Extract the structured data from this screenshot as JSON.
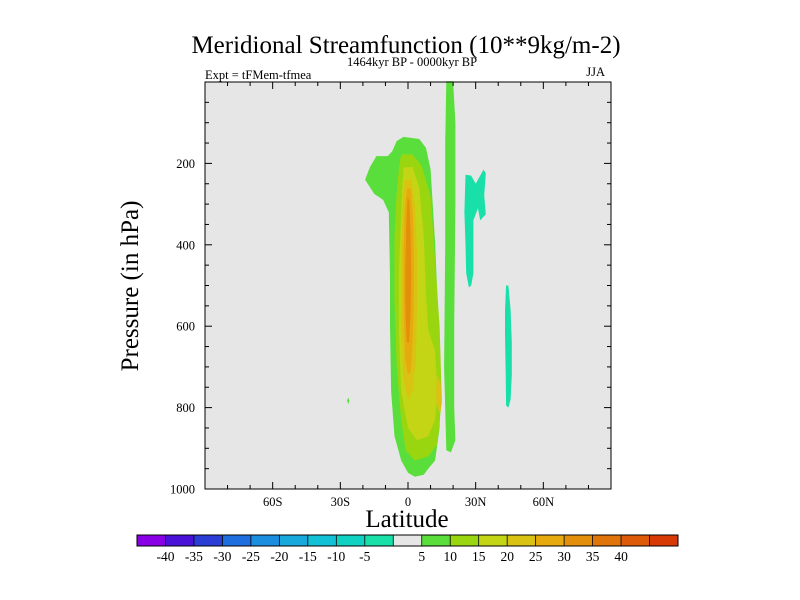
{
  "chart_data": {
    "type": "filled-contour",
    "title": "Meridional Streamfunction (10**9kg/m-2)",
    "subtitle_left": "Expt = tFMem-tfmea",
    "subtitle_center": "1464kyr BP - 0000kyr BP",
    "subtitle_right": "JJA",
    "xlabel": "Latitude",
    "ylabel": "Pressure (in hPa)",
    "xlim": [
      -90,
      90
    ],
    "ylim": [
      0,
      1000
    ],
    "y_reversed": true,
    "x_ticks": [
      {
        "value": -60,
        "label": "60S"
      },
      {
        "value": -30,
        "label": "30S"
      },
      {
        "value": 0,
        "label": "0"
      },
      {
        "value": 30,
        "label": "30N"
      },
      {
        "value": 60,
        "label": "60N"
      }
    ],
    "y_ticks": [
      {
        "value": 200,
        "label": "200"
      },
      {
        "value": 400,
        "label": "400"
      },
      {
        "value": 600,
        "label": "600"
      },
      {
        "value": 800,
        "label": "800"
      },
      {
        "value": 1000,
        "label": "1000"
      }
    ],
    "colorbar": {
      "colors": [
        "#8a00e6",
        "#4a12d8",
        "#2a3ed6",
        "#1f6ee0",
        "#1c8ee0",
        "#17a9dc",
        "#12c1d6",
        "#10d2c2",
        "#18e0a8",
        "#e6e6e6",
        "#5ade3c",
        "#9ad60f",
        "#c3d514",
        "#d9c212",
        "#e6aa0e",
        "#e38f0c",
        "#df740a",
        "#dc5a08",
        "#d83a06"
      ],
      "labels": [
        "-40",
        "-35",
        "-30",
        "-25",
        "-20",
        "-15",
        "-10",
        "-5",
        "5",
        "10",
        "15",
        "20",
        "25",
        "30",
        "35",
        "40"
      ],
      "label_boundaries": [
        1,
        2,
        3,
        4,
        5,
        6,
        7,
        8,
        10,
        11,
        12,
        13,
        14,
        15,
        16,
        17
      ]
    },
    "regions": [
      {
        "name": "green-band",
        "color": "#5ade3c",
        "points": [
          [
            17,
            -2
          ],
          [
            20,
            -2
          ],
          [
            21,
            100
          ],
          [
            21,
            300
          ],
          [
            20.5,
            600
          ],
          [
            20.5,
            800
          ],
          [
            21,
            880
          ],
          [
            19,
            910
          ],
          [
            17,
            905
          ],
          [
            16,
            700
          ],
          [
            16.5,
            400
          ],
          [
            16.5,
            150
          ]
        ]
      },
      {
        "name": "green-main",
        "color": "#5ade3c",
        "points": [
          [
            -2,
            135
          ],
          [
            5,
            140
          ],
          [
            8,
            162
          ],
          [
            10,
            215
          ],
          [
            12,
            395
          ],
          [
            13,
            520
          ],
          [
            14,
            620
          ],
          [
            14.5,
            720
          ],
          [
            14,
            850
          ],
          [
            12,
            930
          ],
          [
            9,
            950
          ],
          [
            7,
            965
          ],
          [
            3,
            970
          ],
          [
            0,
            960
          ],
          [
            -3,
            930
          ],
          [
            -6,
            870
          ],
          [
            -7.5,
            760
          ],
          [
            -8,
            600
          ],
          [
            -8,
            480
          ],
          [
            -8.5,
            320
          ],
          [
            -11,
            290
          ],
          [
            -15,
            275
          ],
          [
            -19,
            240
          ],
          [
            -17,
            210
          ],
          [
            -14,
            182
          ],
          [
            -9,
            182
          ],
          [
            -7,
            170
          ],
          [
            -5,
            145
          ]
        ]
      },
      {
        "name": "green-dot",
        "color": "#5ade3c",
        "points": [
          [
            -26.5,
            775
          ],
          [
            -26,
            783
          ],
          [
            -26.5,
            792
          ],
          [
            -27,
            783
          ]
        ]
      },
      {
        "name": "yellowgreen",
        "color": "#9ad60f",
        "points": [
          [
            -3,
            178
          ],
          [
            2,
            178
          ],
          [
            6,
            205
          ],
          [
            10,
            280
          ],
          [
            12,
            440
          ],
          [
            14,
            600
          ],
          [
            15,
            780
          ],
          [
            13,
            890
          ],
          [
            9,
            920
          ],
          [
            3,
            930
          ],
          [
            -1,
            905
          ],
          [
            -3,
            830
          ],
          [
            -5,
            700
          ],
          [
            -6,
            540
          ],
          [
            -6,
            380
          ],
          [
            -5,
            270
          ],
          [
            -4,
            210
          ]
        ]
      },
      {
        "name": "yellow",
        "color": "#c3d514",
        "points": [
          [
            -2,
            210
          ],
          [
            2,
            208
          ],
          [
            5,
            260
          ],
          [
            7,
            380
          ],
          [
            8,
            520
          ],
          [
            9,
            610
          ],
          [
            12,
            660
          ],
          [
            13,
            760
          ],
          [
            12,
            830
          ],
          [
            9,
            870
          ],
          [
            4,
            880
          ],
          [
            0,
            850
          ],
          [
            -3,
            760
          ],
          [
            -4,
            620
          ],
          [
            -4,
            460
          ],
          [
            -3,
            330
          ],
          [
            -2.5,
            260
          ]
        ]
      },
      {
        "name": "gold",
        "color": "#d9c212",
        "points": [
          [
            -1.5,
            240
          ],
          [
            1.5,
            240
          ],
          [
            3,
            300
          ],
          [
            4,
            420
          ],
          [
            4,
            560
          ],
          [
            3.5,
            680
          ],
          [
            2,
            760
          ],
          [
            0,
            780
          ],
          [
            -2,
            730
          ],
          [
            -3,
            600
          ],
          [
            -3,
            450
          ],
          [
            -2.5,
            330
          ]
        ]
      },
      {
        "name": "gold-right",
        "color": "#d9c212",
        "points": [
          [
            13,
            720
          ],
          [
            14.5,
            740
          ],
          [
            15,
            790
          ],
          [
            14,
            815
          ],
          [
            12.5,
            790
          ],
          [
            12.5,
            750
          ]
        ]
      },
      {
        "name": "orange",
        "color": "#e6aa0e",
        "points": [
          [
            -0.5,
            262
          ],
          [
            1.2,
            262
          ],
          [
            2.2,
            330
          ],
          [
            2.6,
            450
          ],
          [
            2.5,
            560
          ],
          [
            2,
            640
          ],
          [
            1.2,
            710
          ],
          [
            0,
            720
          ],
          [
            -1.3,
            680
          ],
          [
            -1.9,
            560
          ],
          [
            -2,
            430
          ],
          [
            -1.5,
            320
          ]
        ]
      },
      {
        "name": "dark-orange",
        "color": "#e38f0c",
        "points": [
          [
            -0.2,
            285
          ],
          [
            0.6,
            290
          ],
          [
            1.2,
            380
          ],
          [
            1.4,
            470
          ],
          [
            1.1,
            570
          ],
          [
            0.5,
            640
          ],
          [
            -0.5,
            640
          ],
          [
            -1.1,
            570
          ],
          [
            -1.2,
            470
          ],
          [
            -0.8,
            360
          ]
        ]
      },
      {
        "name": "teal-upper",
        "color": "#18e0a8",
        "points": [
          [
            25.5,
            228
          ],
          [
            28,
            230
          ],
          [
            30,
            250
          ],
          [
            33.5,
            215
          ],
          [
            34.5,
            225
          ],
          [
            33.8,
            278
          ],
          [
            34.5,
            325
          ],
          [
            32,
            340
          ],
          [
            31,
            310
          ],
          [
            29,
            340
          ],
          [
            29,
            380
          ],
          [
            29,
            470
          ],
          [
            28,
            500
          ],
          [
            27,
            505
          ],
          [
            25.8,
            470
          ],
          [
            25.5,
            400
          ],
          [
            25,
            320
          ]
        ]
      },
      {
        "name": "teal-lower",
        "color": "#18e0a8",
        "points": [
          [
            43.5,
            500
          ],
          [
            44.5,
            500
          ],
          [
            45.5,
            560
          ],
          [
            46,
            640
          ],
          [
            46,
            720
          ],
          [
            45.5,
            780
          ],
          [
            44.5,
            800
          ],
          [
            43.5,
            795
          ],
          [
            43.3,
            720
          ],
          [
            43,
            620
          ],
          [
            43,
            560
          ]
        ]
      }
    ]
  }
}
